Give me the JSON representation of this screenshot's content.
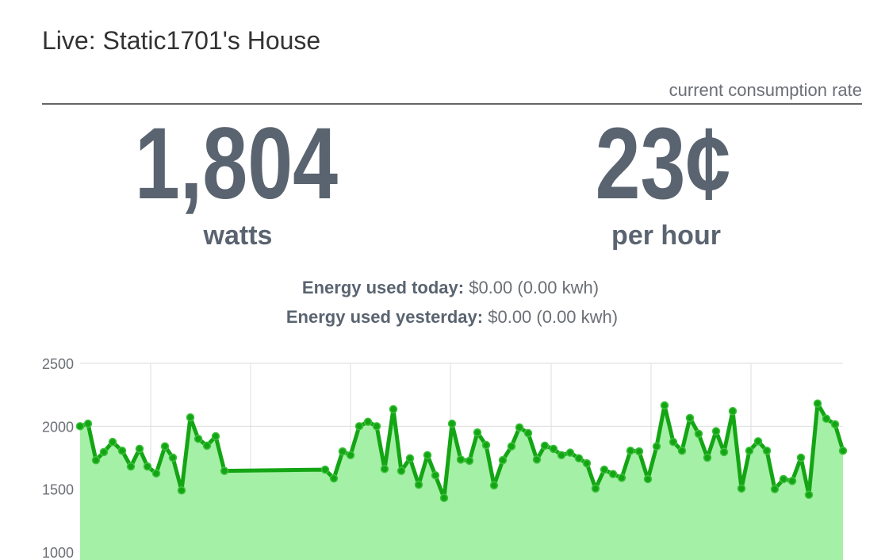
{
  "header": {
    "title": "Live: Static1701's House",
    "subtitle": "current consumption rate"
  },
  "stats": [
    {
      "value": "1,804",
      "unit": "watts"
    },
    {
      "value": "23¢",
      "unit": "per hour"
    }
  ],
  "energy": [
    {
      "label": "Energy used today:",
      "value": "$0.00 (0.00 kwh)"
    },
    {
      "label": "Energy used yesterday:",
      "value": "$0.00 (0.00 kwh)"
    }
  ],
  "chart_data": {
    "type": "area",
    "x": [
      0,
      10,
      20,
      30,
      41,
      53,
      64,
      75,
      85,
      96,
      107,
      117,
      128,
      139,
      149,
      160,
      171,
      182,
      309,
      320,
      331,
      341,
      352,
      363,
      374,
      384,
      395,
      405,
      416,
      427,
      438,
      448,
      459,
      469,
      480,
      491,
      501,
      512,
      522,
      533,
      544,
      554,
      565,
      576,
      586,
      597,
      607,
      618,
      629,
      639,
      650,
      661,
      672,
      683,
      694,
      705,
      716,
      727,
      737,
      748,
      759,
      769,
      780,
      791,
      802,
      812,
      823,
      834,
      844,
      855,
      866,
      876,
      887,
      898,
      909,
      919,
      930,
      941,
      952,
      962
    ],
    "series": [
      {
        "color": "#14a514",
        "area_color": "#a4f0a6",
        "values": [
          2000,
          2020,
          1730,
          1795,
          1875,
          1805,
          1680,
          1820,
          1680,
          1625,
          1840,
          1750,
          1490,
          2070,
          1900,
          1845,
          1920,
          1645,
          1655,
          1585,
          1800,
          1770,
          2000,
          2035,
          2000,
          1660,
          2135,
          1645,
          1745,
          1535,
          1770,
          1610,
          1430,
          2020,
          1735,
          1725,
          1950,
          1850,
          1530,
          1730,
          1840,
          1990,
          1945,
          1735,
          1845,
          1820,
          1770,
          1790,
          1745,
          1705,
          1505,
          1655,
          1620,
          1590,
          1805,
          1800,
          1580,
          1840,
          2165,
          1875,
          1805,
          2065,
          1940,
          1750,
          1960,
          1795,
          2120,
          1505,
          1805,
          1880,
          1805,
          1500,
          1580,
          1565,
          1750,
          1455,
          2180,
          2060,
          2015,
          1805
        ]
      }
    ],
    "xlim": [
      0,
      962
    ],
    "ylim": [
      1000,
      2500
    ],
    "yticks": [
      1000,
      1500,
      2000,
      2500
    ],
    "grid": true
  }
}
